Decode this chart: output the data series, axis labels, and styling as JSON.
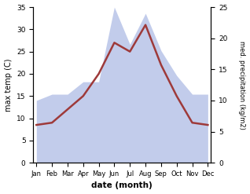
{
  "months": [
    "Jan",
    "Feb",
    "Mar",
    "Apr",
    "May",
    "Jun",
    "Jul",
    "Aug",
    "Sep",
    "Oct",
    "Nov",
    "Dec"
  ],
  "temperature": [
    8.5,
    9.0,
    12.0,
    15.0,
    20.0,
    27.0,
    25.0,
    31.0,
    22.0,
    15.0,
    9.0,
    8.5
  ],
  "precipitation": [
    10.0,
    11.0,
    11.0,
    13.0,
    13.0,
    25.0,
    19.0,
    24.0,
    18.0,
    14.0,
    11.0,
    11.0
  ],
  "temp_color": "#9e3a3a",
  "precip_fill_color": "#b8c4e8",
  "precip_fill_alpha": 0.85,
  "temp_ylim": [
    0,
    35
  ],
  "precip_ylim": [
    0,
    25
  ],
  "temp_yticks": [
    0,
    5,
    10,
    15,
    20,
    25,
    30,
    35
  ],
  "precip_yticks": [
    0,
    5,
    10,
    15,
    20,
    25
  ],
  "xlabel": "date (month)",
  "ylabel_left": "max temp (C)",
  "ylabel_right": "med. precipitation (kg/m2)",
  "bg_color": "#ffffff"
}
